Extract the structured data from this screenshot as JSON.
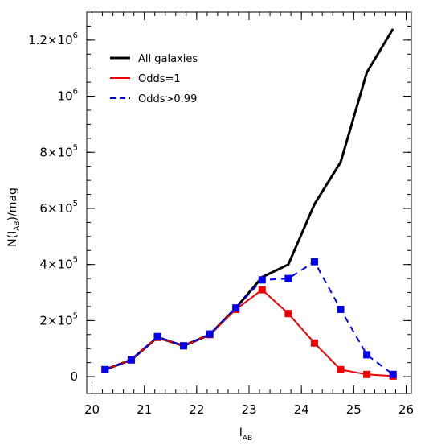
{
  "chart_data": {
    "type": "line",
    "xlabel": {
      "main": "I",
      "sub": "AB"
    },
    "ylabel": {
      "prefix": "N(I",
      "sub": "AB",
      "suffix": ")/mag"
    },
    "xlim": [
      19.9,
      26.1
    ],
    "ylim": [
      -60000,
      1300000
    ],
    "x_ticks": [
      {
        "value": 20,
        "label": "20"
      },
      {
        "value": 21,
        "label": "21"
      },
      {
        "value": 22,
        "label": "22"
      },
      {
        "value": 23,
        "label": "23"
      },
      {
        "value": 24,
        "label": "24"
      },
      {
        "value": 25,
        "label": "25"
      },
      {
        "value": 26,
        "label": "26"
      }
    ],
    "y_ticks": [
      {
        "value": 0,
        "mant": "0",
        "exp": ""
      },
      {
        "value": 200000,
        "mant": "2×10",
        "exp": "5"
      },
      {
        "value": 400000,
        "mant": "4×10",
        "exp": "5"
      },
      {
        "value": 600000,
        "mant": "6×10",
        "exp": "5"
      },
      {
        "value": 800000,
        "mant": "8×10",
        "exp": "5"
      },
      {
        "value": 1000000,
        "mant": "10",
        "exp": "6"
      },
      {
        "value": 1200000,
        "mant": "1.2×10",
        "exp": "6"
      }
    ],
    "legend_position": "top-left",
    "series": [
      {
        "name": "All galaxies",
        "color": "#000000",
        "dash": "solid",
        "markers": false,
        "x": [
          20.25,
          20.75,
          21.25,
          21.75,
          22.25,
          22.75,
          23.25,
          23.75,
          24.25,
          24.75,
          25.25,
          25.75
        ],
        "values": [
          25000,
          60000,
          140000,
          110000,
          150000,
          245000,
          355000,
          400000,
          615000,
          765000,
          1085000,
          1240000
        ]
      },
      {
        "name": "Odds=1",
        "color": "#ee0000",
        "dash": "solid",
        "markers": true,
        "x": [
          20.25,
          20.75,
          21.25,
          21.75,
          22.25,
          22.75,
          23.25,
          23.75,
          24.25,
          24.75,
          25.25,
          25.75
        ],
        "values": [
          25000,
          60000,
          140000,
          110000,
          150000,
          240000,
          310000,
          225000,
          120000,
          25000,
          8000,
          2000
        ]
      },
      {
        "name": "Odds>0.99",
        "color": "#0000ee",
        "dash": "dashed",
        "markers": true,
        "x": [
          20.25,
          20.75,
          21.25,
          21.75,
          22.25,
          22.75,
          23.25,
          23.75,
          24.25,
          24.75,
          25.25,
          25.75
        ],
        "values": [
          25000,
          60000,
          143000,
          110000,
          152000,
          245000,
          345000,
          350000,
          410000,
          240000,
          78000,
          8000
        ]
      }
    ]
  }
}
